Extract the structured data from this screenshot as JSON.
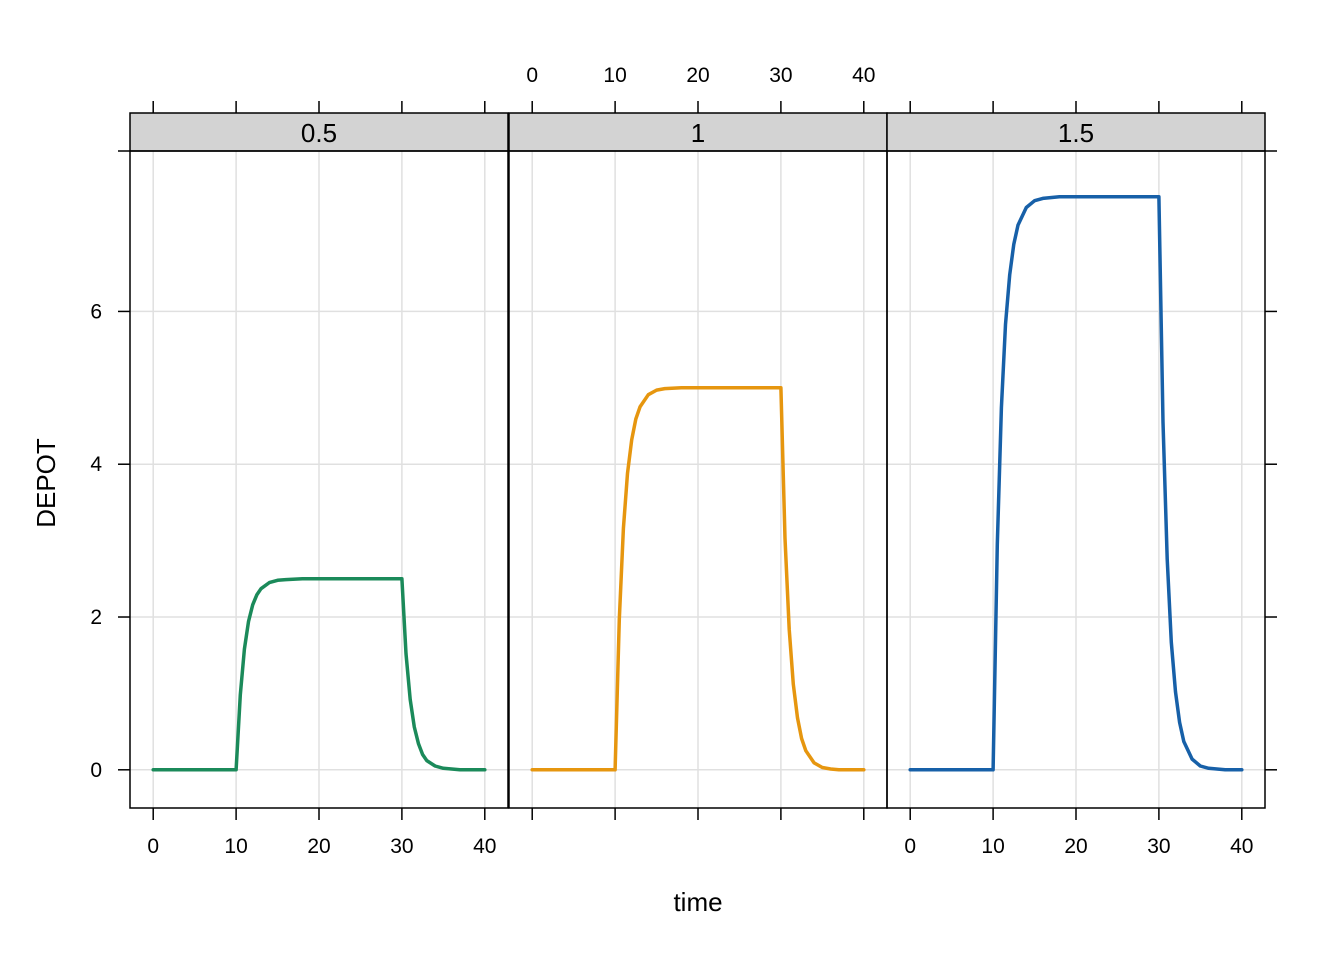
{
  "chart_data": {
    "type": "line",
    "layout": "faceted panels (1 row x 3 columns), shared axes",
    "xlabel": "time",
    "ylabel": "DEPOT",
    "xlim": [
      -2.8,
      42.8
    ],
    "ylim": [
      -0.5,
      8.1
    ],
    "x_ticks": [
      0,
      10,
      20,
      30,
      40
    ],
    "y_ticks": [
      0,
      2,
      4,
      6
    ],
    "grid": true,
    "grid_color": "#e0e0e0",
    "strip_color": "#d3d3d3",
    "panels": [
      {
        "strip_label": "0.5",
        "color": "#1b8a5a",
        "series": {
          "name": "0.5",
          "x": [
            0,
            10,
            10.5,
            11,
            11.5,
            12,
            12.5,
            13,
            14,
            15,
            16,
            18,
            20,
            22,
            25,
            28,
            30,
            30.5,
            31,
            31.5,
            32,
            32.5,
            33,
            34,
            35,
            36,
            37,
            38,
            40
          ],
          "y": [
            0,
            0,
            0.98,
            1.58,
            1.94,
            2.16,
            2.29,
            2.37,
            2.45,
            2.48,
            2.49,
            2.5,
            2.5,
            2.5,
            2.5,
            2.5,
            2.5,
            1.52,
            0.92,
            0.56,
            0.34,
            0.2,
            0.12,
            0.05,
            0.02,
            0.01,
            0,
            0,
            0
          ]
        }
      },
      {
        "strip_label": "1",
        "color": "#e6960f",
        "series": {
          "name": "1",
          "x": [
            0,
            10,
            10.5,
            11,
            11.5,
            12,
            12.5,
            13,
            14,
            15,
            16,
            18,
            20,
            22,
            25,
            28,
            30,
            30.5,
            31,
            31.5,
            32,
            32.5,
            33,
            34,
            35,
            36,
            37,
            38,
            40
          ],
          "y": [
            0,
            0,
            1.97,
            3.16,
            3.88,
            4.32,
            4.59,
            4.75,
            4.91,
            4.97,
            4.99,
            5.0,
            5.0,
            5.0,
            5.0,
            5.0,
            5.0,
            3.03,
            1.84,
            1.12,
            0.68,
            0.41,
            0.25,
            0.09,
            0.03,
            0.01,
            0,
            0,
            0
          ]
        }
      },
      {
        "strip_label": "1.5",
        "color": "#1760a8",
        "series": {
          "name": "1.5",
          "x": [
            0,
            10,
            10.5,
            11,
            11.5,
            12,
            12.5,
            13,
            14,
            15,
            16,
            18,
            20,
            22,
            25,
            28,
            30,
            30.5,
            31,
            31.5,
            32,
            32.5,
            33,
            34,
            35,
            36,
            37,
            38,
            40
          ],
          "y": [
            0,
            0,
            2.95,
            4.74,
            5.83,
            6.48,
            6.88,
            7.13,
            7.36,
            7.45,
            7.48,
            7.5,
            7.5,
            7.5,
            7.5,
            7.5,
            7.5,
            4.55,
            2.76,
            1.67,
            1.02,
            0.62,
            0.37,
            0.14,
            0.05,
            0.02,
            0.01,
            0,
            0
          ]
        }
      }
    ]
  }
}
